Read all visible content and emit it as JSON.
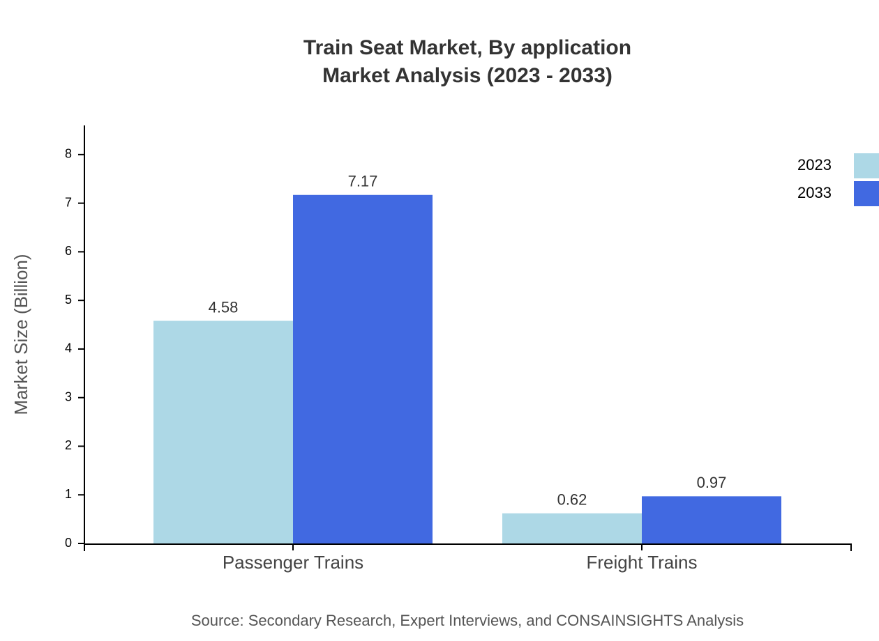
{
  "chart_data": {
    "type": "bar",
    "title": "Train Seat Market, By application",
    "subtitle": "Market Analysis (2023 - 2033)",
    "y_label": "Market Size (Billion)",
    "source": "Source: Secondary Research, Expert Interviews, and CONSAINSIGHTS Analysis",
    "categories": [
      "Passenger Trains",
      "Freight Trains"
    ],
    "series": [
      {
        "name": "2023",
        "color": "#add8e6",
        "values": [
          4.58,
          0.62
        ]
      },
      {
        "name": "2033",
        "color": "#4169e1",
        "values": [
          7.17,
          0.97
        ]
      }
    ],
    "ylim": [
      0,
      8.6
    ],
    "yticks": [
      0,
      1,
      2,
      3,
      4,
      5,
      6,
      7,
      8
    ],
    "grid": false,
    "legend": "top-right"
  }
}
